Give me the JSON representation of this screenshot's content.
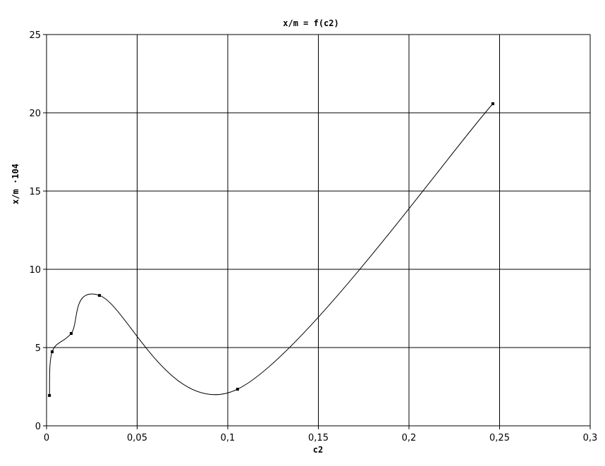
{
  "chart_data": {
    "type": "scatter",
    "title": "x/m = f(c2)",
    "x_label": "c2",
    "y_label": "x/m ·104",
    "x": [
      0.0016,
      0.0031,
      0.0136,
      0.0292,
      0.1054,
      0.2463
    ],
    "values": [
      1.94,
      4.73,
      5.9,
      8.33,
      2.34,
      20.58
    ],
    "color": "#000000",
    "smooth": true,
    "grid": true,
    "xlim": [
      0,
      0.3
    ],
    "xticks": [
      0,
      {
        "value": 0.05,
        "label": "0,05"
      },
      {
        "value": 0.1,
        "label": "0,1"
      },
      {
        "value": 0.15,
        "label": "0,15"
      },
      {
        "value": 0.2,
        "label": "0,2"
      },
      {
        "value": 0.25,
        "label": "0,25"
      },
      {
        "value": 0.3,
        "label": "0,3"
      }
    ],
    "ylim": [
      0,
      25
    ],
    "yticks": [
      0,
      5,
      10,
      15,
      20,
      25
    ]
  }
}
